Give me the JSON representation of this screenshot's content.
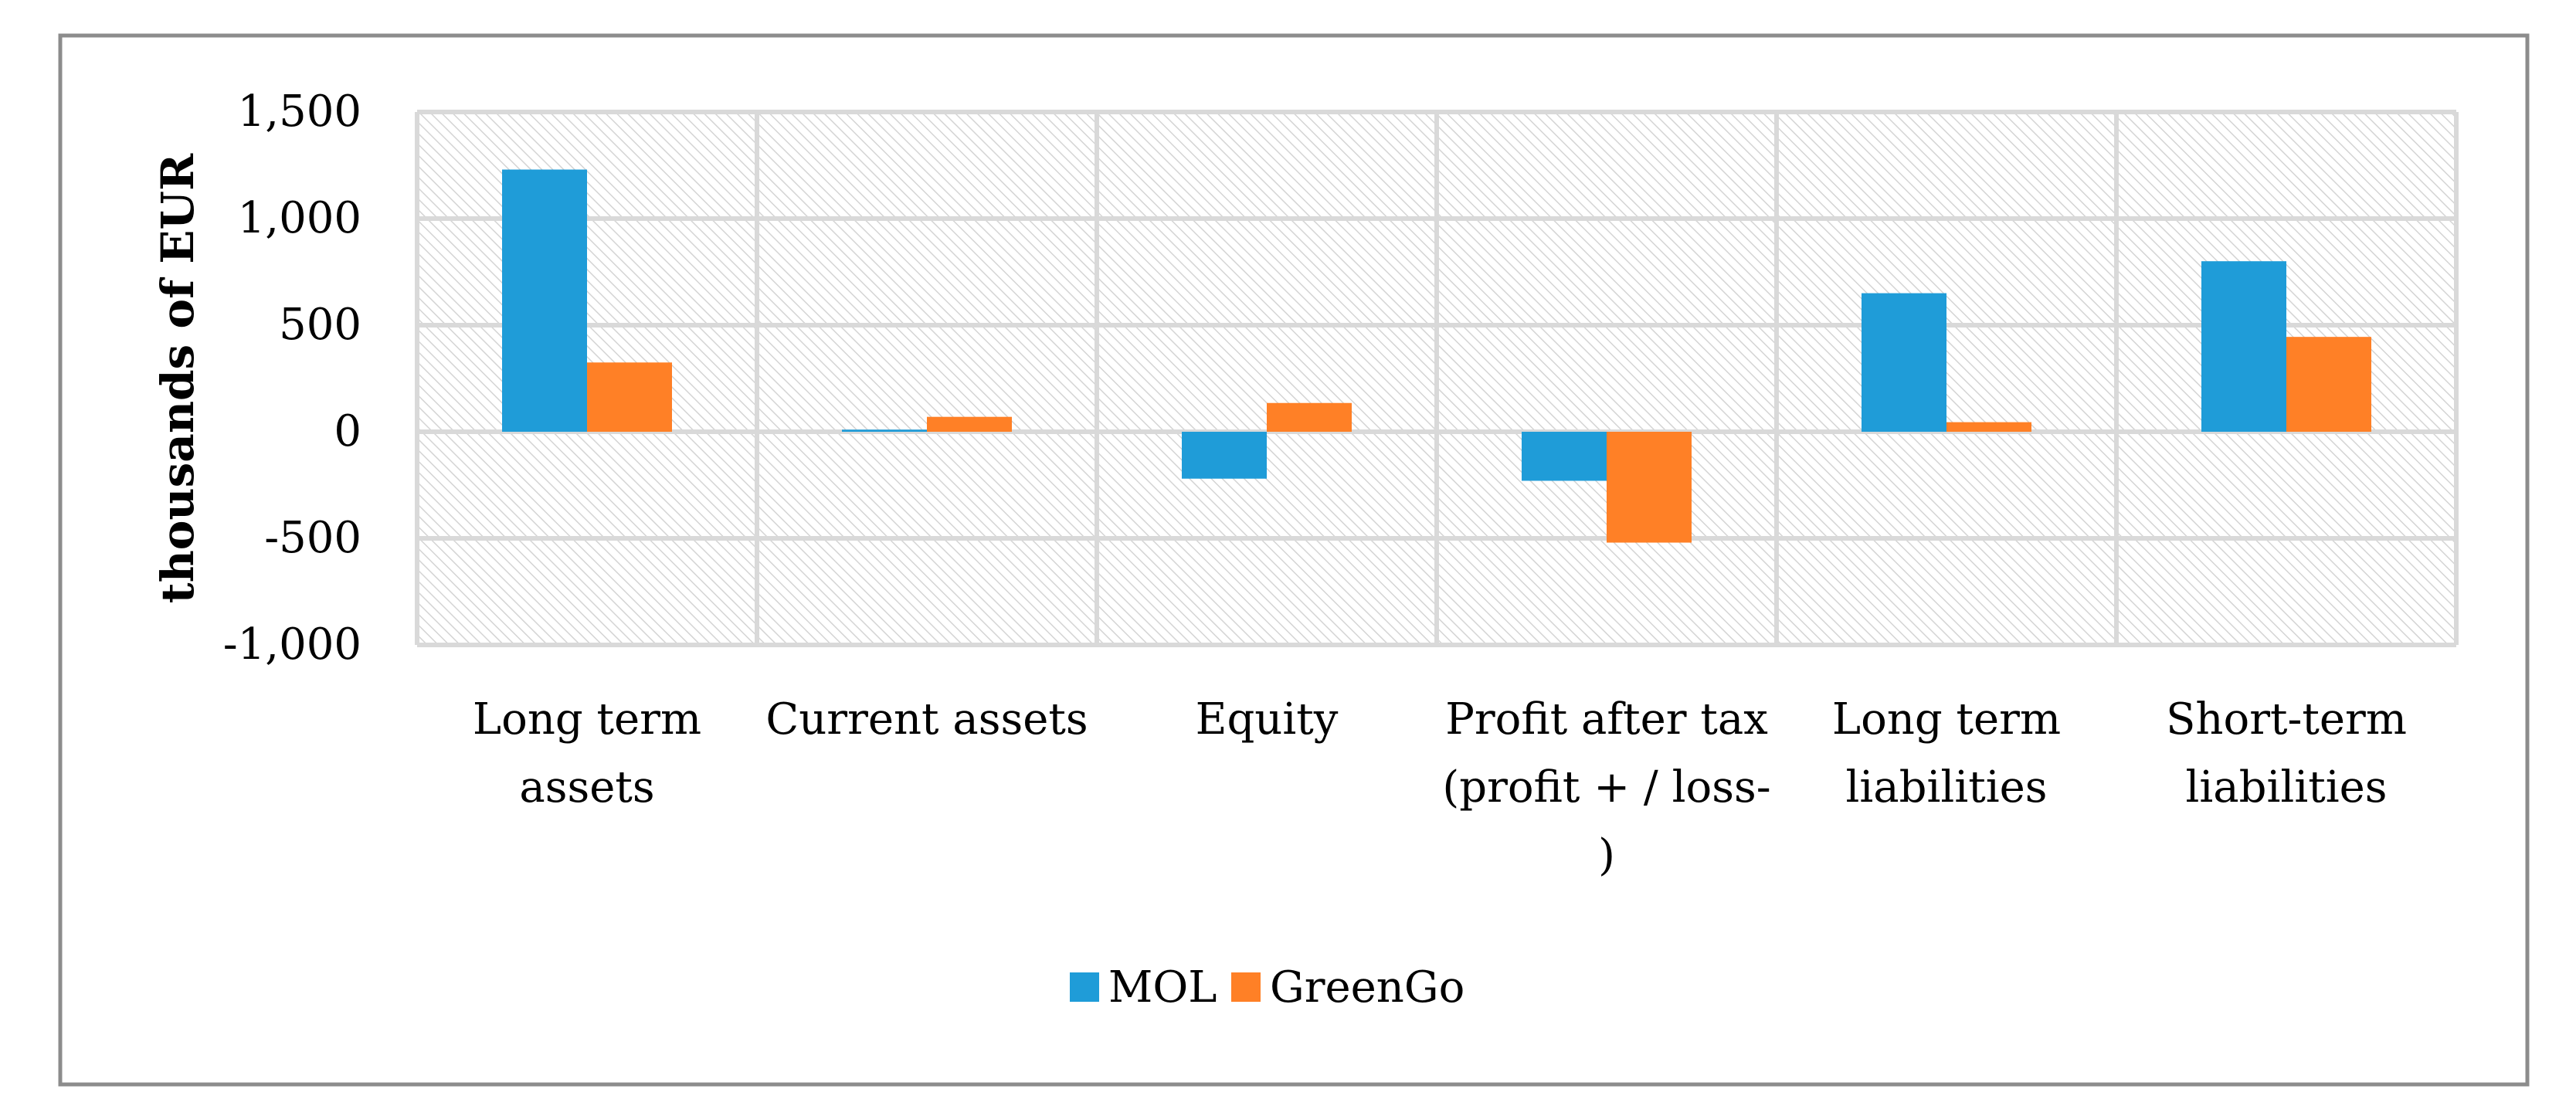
{
  "chart_data": {
    "type": "bar",
    "title": "",
    "xlabel": "",
    "ylabel": "thousands of EUR",
    "ylim": [
      -1000,
      1500
    ],
    "yticks": [
      1500,
      1000,
      500,
      0,
      -500,
      -1000
    ],
    "ytick_labels": [
      "1,500",
      "1,000",
      "500",
      "0",
      "-500",
      "-1,000"
    ],
    "grid": true,
    "legend_position": "bottom",
    "categories": [
      [
        "Long term",
        "assets"
      ],
      [
        "Current assets"
      ],
      [
        "Equity"
      ],
      [
        "Profit after tax",
        "(profit + / loss-",
        ")"
      ],
      [
        "Long term",
        "liabilities"
      ],
      [
        "Short-term",
        "liabilities"
      ]
    ],
    "series": [
      {
        "name": "MOL",
        "color": "#1F9CD8",
        "values": [
          1230,
          10,
          -220,
          -230,
          650,
          800
        ]
      },
      {
        "name": "GreenGo",
        "color": "#FF8026",
        "values": [
          325,
          70,
          135,
          -520,
          45,
          445
        ]
      }
    ]
  }
}
